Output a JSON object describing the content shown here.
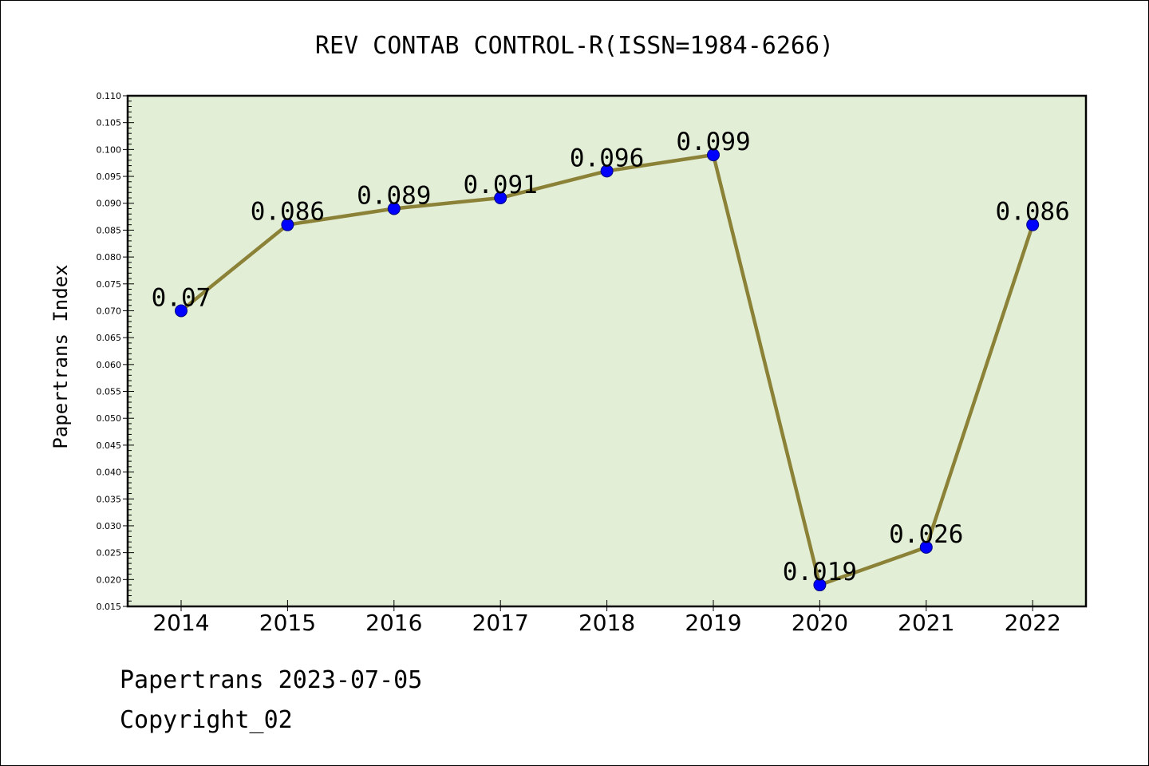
{
  "chart_data": {
    "type": "line",
    "title": "REV CONTAB CONTROL-R(ISSN=1984-6266)",
    "xlabel": "",
    "ylabel": "Papertrans Index",
    "x": [
      "2014",
      "2015",
      "2016",
      "2017",
      "2018",
      "2019",
      "2020",
      "2021",
      "2022"
    ],
    "series": [
      {
        "values": [
          0.07,
          0.086,
          0.089,
          0.091,
          0.096,
          0.099,
          0.019,
          0.026,
          0.086
        ],
        "data_labels": [
          "0.07",
          "0.086",
          "0.089",
          "0.091",
          "0.096",
          "0.099",
          "0.019",
          "0.026",
          "0.086"
        ]
      }
    ],
    "ylim": [
      0.015,
      0.11
    ],
    "yticks": [
      "0.015",
      "0.020",
      "0.025",
      "0.030",
      "0.035",
      "0.040",
      "0.045",
      "0.050",
      "0.055",
      "0.060",
      "0.065",
      "0.070",
      "0.075",
      "0.080",
      "0.085",
      "0.090",
      "0.095",
      "0.100",
      "0.105",
      "0.110"
    ],
    "grid": false,
    "legend": "none",
    "colors": {
      "plot_background": "#e2efd6",
      "line": "#8b8238",
      "marker_fill": "#0000ff",
      "marker_edge": "#000080",
      "axis": "#000000"
    }
  },
  "footer": {
    "line1": "Papertrans 2023-07-05",
    "line2": "Copyright_02"
  }
}
